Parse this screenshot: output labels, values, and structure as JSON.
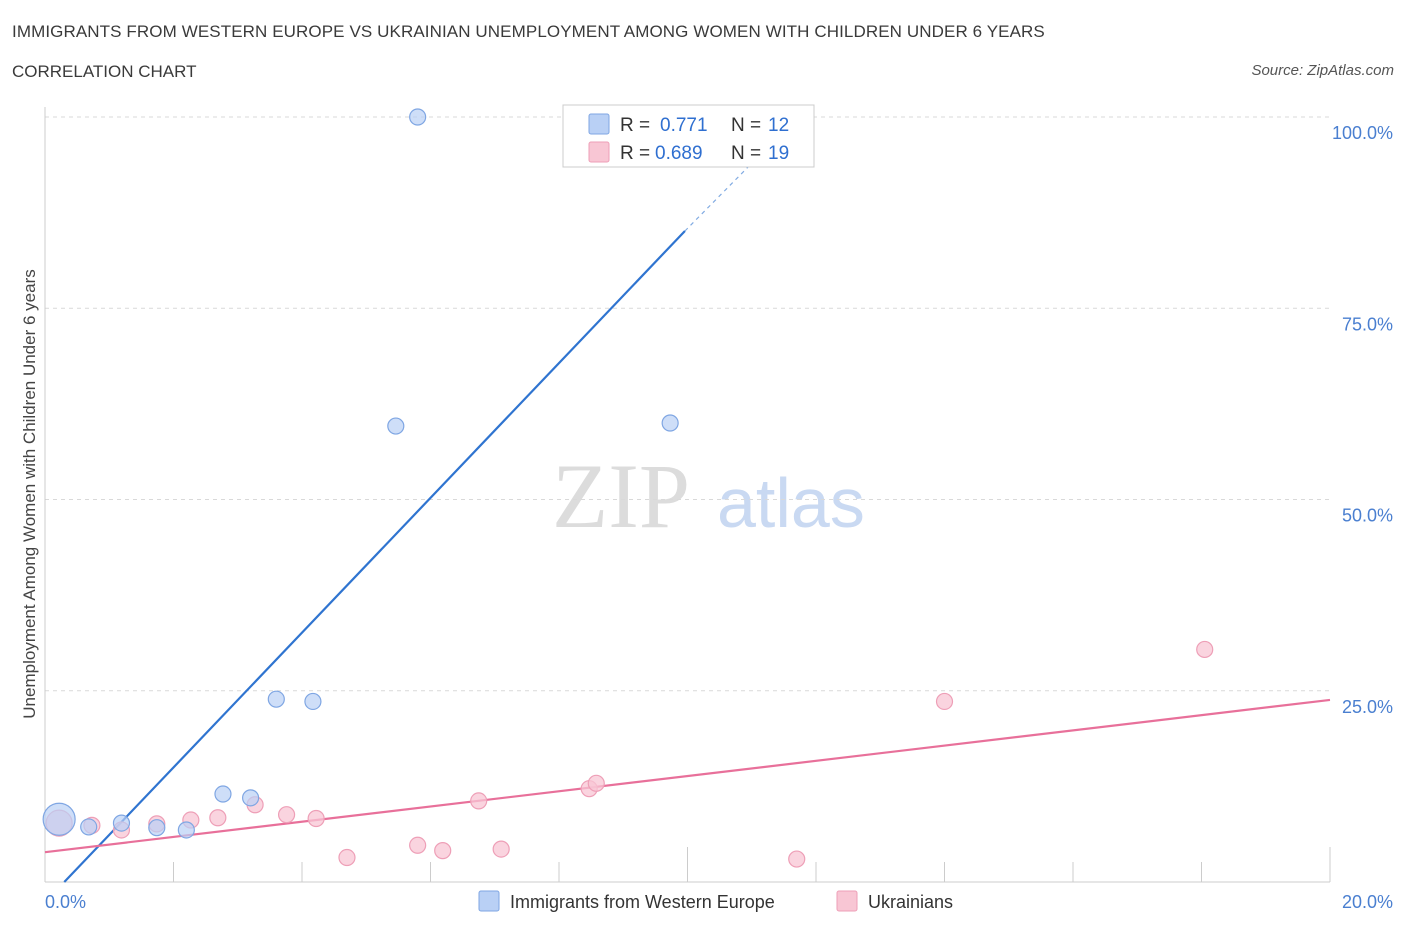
{
  "header": {
    "title": "IMMIGRANTS FROM WESTERN EUROPE VS UKRAINIAN UNEMPLOYMENT AMONG WOMEN WITH CHILDREN UNDER 6 YEARS",
    "subtitle": "CORRELATION CHART",
    "source": "Source: ZipAtlas.com"
  },
  "watermark": {
    "zip": "ZIP",
    "atlas": "atlas"
  },
  "colors": {
    "blue_fill": "#b9d0f5",
    "blue_stroke": "#7fa6e3",
    "blue_line": "#2f74d0",
    "pink_fill": "#f8c6d4",
    "pink_stroke": "#ee9fb7",
    "pink_line": "#e8709a",
    "tick_label": "#4a7fd0",
    "grid": "#d9d9d9"
  },
  "chart_data": {
    "type": "scatter",
    "title": "IMMIGRANTS FROM WESTERN EUROPE VS UKRAINIAN UNEMPLOYMENT AMONG WOMEN WITH CHILDREN UNDER 6 YEARS",
    "xlabel": "",
    "ylabel": "Unemployment Among Women with Children Under 6 years",
    "xlim": [
      0,
      20
    ],
    "ylim": [
      0,
      100
    ],
    "x_tick_labels": [
      "0.0%",
      "20.0%"
    ],
    "y_ticks": [
      25,
      50,
      75,
      100
    ],
    "y_tick_labels": [
      "25.0%",
      "50.0%",
      "75.0%",
      "100.0%"
    ],
    "grid": true,
    "legend_position": "top-center",
    "series": [
      {
        "name": "Immigrants from Western Europe",
        "color": "blue",
        "R": "0.771",
        "N": "12",
        "points": [
          {
            "x": 0.22,
            "y": 8.2,
            "size": 3
          },
          {
            "x": 0.68,
            "y": 7.2,
            "size": 1
          },
          {
            "x": 1.19,
            "y": 7.7,
            "size": 1
          },
          {
            "x": 1.74,
            "y": 7.1,
            "size": 1
          },
          {
            "x": 2.2,
            "y": 6.8,
            "size": 1
          },
          {
            "x": 2.77,
            "y": 11.5,
            "size": 1
          },
          {
            "x": 3.2,
            "y": 11.0,
            "size": 1
          },
          {
            "x": 3.6,
            "y": 23.9,
            "size": 1
          },
          {
            "x": 4.17,
            "y": 23.6,
            "size": 1
          },
          {
            "x": 5.46,
            "y": 59.6,
            "size": 1
          },
          {
            "x": 5.8,
            "y": 100.0,
            "size": 1
          },
          {
            "x": 9.73,
            "y": 60.0,
            "size": 1
          }
        ],
        "trend": {
          "x0": 0.3,
          "y0": 0.0,
          "x1": 9.96,
          "y1": 85.1,
          "dash_to_x": 11.1,
          "dash_to_y": 94.8
        }
      },
      {
        "name": "Ukrainians",
        "color": "pink",
        "R": "0.689",
        "N": "19",
        "points": [
          {
            "x": 0.22,
            "y": 7.7,
            "size": 2
          },
          {
            "x": 0.73,
            "y": 7.4,
            "size": 1
          },
          {
            "x": 1.19,
            "y": 6.8,
            "size": 1
          },
          {
            "x": 1.74,
            "y": 7.6,
            "size": 1
          },
          {
            "x": 2.27,
            "y": 8.1,
            "size": 1
          },
          {
            "x": 2.69,
            "y": 8.4,
            "size": 1
          },
          {
            "x": 3.27,
            "y": 10.1,
            "size": 1
          },
          {
            "x": 3.76,
            "y": 8.8,
            "size": 1
          },
          {
            "x": 4.22,
            "y": 8.3,
            "size": 1
          },
          {
            "x": 4.7,
            "y": 3.2,
            "size": 1
          },
          {
            "x": 5.8,
            "y": 4.8,
            "size": 1
          },
          {
            "x": 6.19,
            "y": 4.1,
            "size": 1
          },
          {
            "x": 6.75,
            "y": 10.6,
            "size": 1
          },
          {
            "x": 7.1,
            "y": 4.3,
            "size": 1
          },
          {
            "x": 8.47,
            "y": 12.2,
            "size": 1
          },
          {
            "x": 8.58,
            "y": 12.9,
            "size": 1
          },
          {
            "x": 11.7,
            "y": 3.0,
            "size": 1
          },
          {
            "x": 14.0,
            "y": 23.6,
            "size": 1
          },
          {
            "x": 18.05,
            "y": 30.4,
            "size": 1
          }
        ],
        "trend": {
          "x0": 0.0,
          "y0": 3.9,
          "x1": 20.0,
          "y1": 23.8
        }
      }
    ],
    "bottom_legend": [
      "Immigrants from Western Europe",
      "Ukrainians"
    ]
  }
}
